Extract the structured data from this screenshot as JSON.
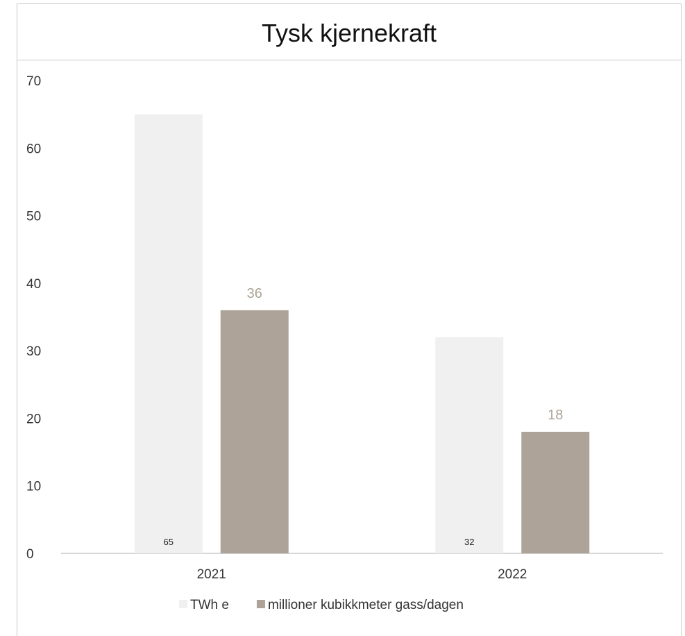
{
  "chart_data": {
    "type": "bar",
    "title": "Tysk kjernekraft",
    "categories": [
      "2021",
      "2022"
    ],
    "series": [
      {
        "name": "TWh e",
        "values": [
          65,
          32
        ],
        "color": "#f0f0f0",
        "label_color": "#222222"
      },
      {
        "name": "millioner kubikkmeter gass/dagen",
        "values": [
          36,
          18
        ],
        "color": "#ada398",
        "label_color": "#ada398"
      }
    ],
    "data_labels": [
      [
        "65",
        "32"
      ],
      [
        "36",
        "18"
      ]
    ],
    "ylim": [
      0,
      70
    ],
    "yticks": [
      "0",
      "10",
      "20",
      "30",
      "40",
      "50",
      "60",
      "70"
    ],
    "grid": false,
    "legend": "bottom"
  }
}
